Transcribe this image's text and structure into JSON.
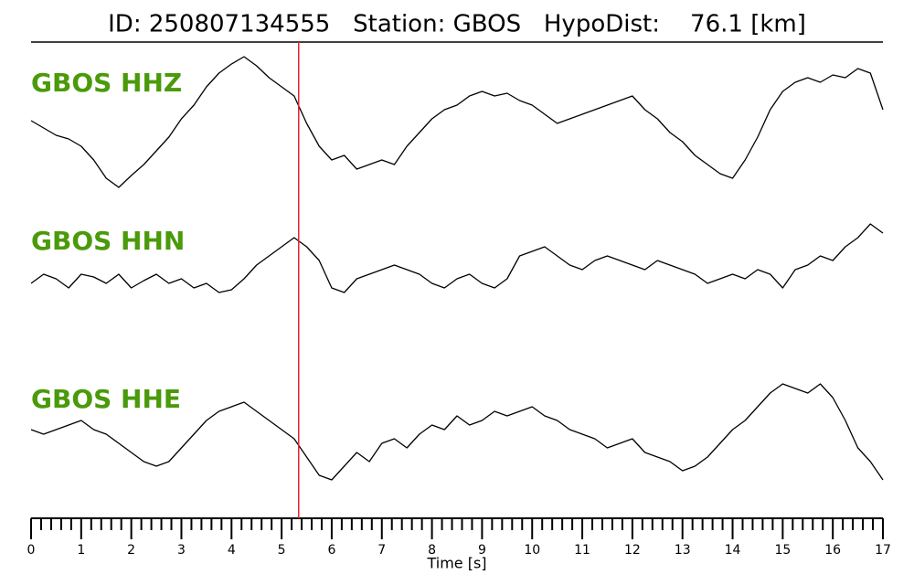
{
  "chart_data": {
    "type": "line",
    "title": "ID: 250807134555   Station: GBOS   HypoDist:    76.1 [km]",
    "x_label": "Time [s]",
    "xlim": [
      0,
      17
    ],
    "xticks": [
      0,
      1,
      2,
      3,
      4,
      5,
      6,
      7,
      8,
      9,
      10,
      11,
      12,
      13,
      14,
      15,
      16,
      17
    ],
    "minor_xticks": [
      0.2,
      0.4,
      0.6,
      0.8,
      1.2,
      1.4,
      1.6,
      1.8,
      2.2,
      2.4,
      2.6,
      2.8,
      3.2,
      3.4,
      3.6,
      3.8,
      4.2,
      4.4,
      4.6,
      4.8,
      5.2,
      5.4,
      5.6,
      5.8,
      6.2,
      6.4,
      6.6,
      6.8,
      7.2,
      7.4,
      7.6,
      7.8,
      8.2,
      8.4,
      8.6,
      8.8,
      9.2,
      9.4,
      9.6,
      9.8,
      10.2,
      10.4,
      10.6,
      10.8,
      11.2,
      11.4,
      11.6,
      11.8,
      12.2,
      12.4,
      12.6,
      12.8,
      13.2,
      13.4,
      13.6,
      13.8,
      14.2,
      14.4,
      14.6,
      14.8,
      15.2,
      15.4,
      15.6,
      15.8,
      16.2,
      16.4,
      16.6,
      16.8
    ],
    "ylim": [
      -80,
      80
    ],
    "label_color": "#4a9a0a",
    "markers": [
      {
        "x": 5.34,
        "color": "#e8262a"
      }
    ],
    "x": [
      0,
      0.25,
      0.5,
      0.75,
      1,
      1.25,
      1.5,
      1.75,
      2,
      2.25,
      2.5,
      2.75,
      3,
      3.25,
      3.5,
      3.75,
      4,
      4.25,
      4.5,
      4.75,
      5,
      5.25,
      5.5,
      5.75,
      6,
      6.25,
      6.5,
      6.75,
      7,
      7.25,
      7.5,
      7.75,
      8,
      8.25,
      8.5,
      8.75,
      9,
      9.25,
      9.5,
      9.75,
      10,
      10.25,
      10.5,
      10.75,
      11,
      11.25,
      11.5,
      11.75,
      12,
      12.25,
      12.5,
      12.75,
      13,
      13.25,
      13.5,
      13.75,
      14,
      14.25,
      14.5,
      14.75,
      15,
      15.25,
      15.5,
      15.75,
      16,
      16.25,
      16.5,
      16.75,
      17
    ],
    "series": [
      {
        "name": "GBOS HHZ",
        "color": "#000000",
        "values": [
          -2,
          -10,
          -18,
          -22,
          -30,
          -45,
          -65,
          -75,
          -62,
          -50,
          -35,
          -20,
          0,
          15,
          35,
          50,
          60,
          68,
          58,
          45,
          35,
          25,
          -5,
          -30,
          -45,
          -40,
          -55,
          -50,
          -45,
          -50,
          -30,
          -15,
          0,
          10,
          15,
          25,
          30,
          25,
          28,
          20,
          15,
          5,
          -5,
          0,
          5,
          10,
          15,
          20,
          25,
          10,
          0,
          -15,
          -25,
          -40,
          -50,
          -60,
          -65,
          -45,
          -20,
          10,
          30,
          40,
          45,
          40,
          48,
          45,
          55,
          50,
          10
        ]
      },
      {
        "name": "GBOS HHN",
        "color": "#000000",
        "values": [
          -15,
          -5,
          -10,
          -20,
          -5,
          -8,
          -15,
          -5,
          -20,
          -12,
          -5,
          -15,
          -10,
          -20,
          -15,
          -25,
          -22,
          -10,
          5,
          15,
          25,
          35,
          25,
          10,
          -20,
          -25,
          -10,
          -5,
          0,
          5,
          0,
          -5,
          -15,
          -20,
          -10,
          -5,
          -15,
          -20,
          -10,
          15,
          20,
          25,
          15,
          5,
          0,
          10,
          15,
          10,
          5,
          0,
          10,
          5,
          0,
          -5,
          -15,
          -10,
          -5,
          -10,
          0,
          -5,
          -20,
          0,
          5,
          15,
          10,
          25,
          35,
          50,
          40
        ]
      },
      {
        "name": "GBOS HHE",
        "color": "#000000",
        "values": [
          10,
          5,
          10,
          15,
          20,
          10,
          5,
          -5,
          -15,
          -25,
          -30,
          -25,
          -10,
          5,
          20,
          30,
          35,
          40,
          30,
          20,
          10,
          0,
          -20,
          -40,
          -45,
          -30,
          -15,
          -25,
          -5,
          0,
          -10,
          5,
          15,
          10,
          25,
          15,
          20,
          30,
          25,
          30,
          35,
          25,
          20,
          10,
          5,
          0,
          -10,
          -5,
          0,
          -15,
          -20,
          -25,
          -35,
          -30,
          -20,
          -5,
          10,
          20,
          35,
          50,
          60,
          55,
          50,
          60,
          45,
          20,
          -10,
          -25,
          -45
        ]
      }
    ]
  }
}
